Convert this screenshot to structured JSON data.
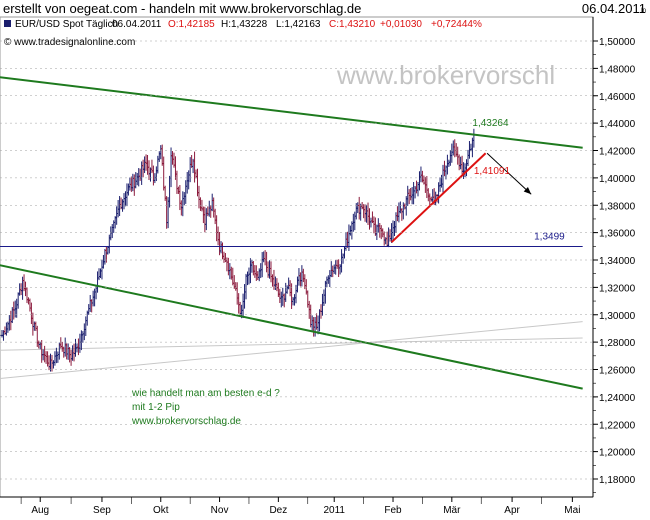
{
  "page": {
    "title": "erstellt von oegeat.com - handeln mit www.brokervorschlag.de",
    "date": "06.04.2011"
  },
  "chart_data": {
    "type": "ohlc",
    "instrument": "EUR/USD Spot Täglich",
    "header": {
      "date": "06.04.2011",
      "open": "O:1,42185",
      "high": "H:1,43228",
      "low": "L:1,42163",
      "close": "C:1,43210",
      "change": "+0,01030",
      "change_pct": "+0,72444%"
    },
    "source": "© www.tradesignalonline.com",
    "watermark": "www.brokervorschl",
    "ylim": [
      1.16,
      1.51
    ],
    "y_ticks": [
      "1,18000",
      "1,20000",
      "1,22000",
      "1,24000",
      "1,26000",
      "1,28000",
      "1,30000",
      "1,32000",
      "1,34000",
      "1,36000",
      "1,38000",
      "1,40000",
      "1,42000",
      "1,44000",
      "1,46000",
      "1,48000",
      "1,50000"
    ],
    "x_ticks": [
      "Aug",
      "Sep",
      "Okt",
      "Nov",
      "Dez",
      "2011",
      "Feb",
      "Mär",
      "Apr",
      "Mai"
    ],
    "series_color": "#1b1f6e",
    "up_color": "#1b1f6e",
    "down_color": "#8b1a3c",
    "anchors": [
      [
        0,
        1.285
      ],
      [
        9,
        1.305
      ],
      [
        14,
        1.325
      ],
      [
        18,
        1.31
      ],
      [
        22,
        1.29
      ],
      [
        26,
        1.275
      ],
      [
        33,
        1.263
      ],
      [
        40,
        1.278
      ],
      [
        47,
        1.27
      ],
      [
        51,
        1.275
      ],
      [
        58,
        1.3
      ],
      [
        64,
        1.32
      ],
      [
        70,
        1.345
      ],
      [
        75,
        1.36
      ],
      [
        80,
        1.38
      ],
      [
        86,
        1.392
      ],
      [
        92,
        1.4
      ],
      [
        98,
        1.41
      ],
      [
        103,
        1.4
      ],
      [
        108,
        1.42
      ],
      [
        112,
        1.37
      ],
      [
        115,
        1.42
      ],
      [
        118,
        1.4
      ],
      [
        122,
        1.38
      ],
      [
        126,
        1.4
      ],
      [
        130,
        1.415
      ],
      [
        134,
        1.385
      ],
      [
        138,
        1.37
      ],
      [
        143,
        1.38
      ],
      [
        148,
        1.35
      ],
      [
        153,
        1.34
      ],
      [
        158,
        1.32
      ],
      [
        163,
        1.3
      ],
      [
        166,
        1.325
      ],
      [
        170,
        1.335
      ],
      [
        174,
        1.325
      ],
      [
        178,
        1.34
      ],
      [
        182,
        1.33
      ],
      [
        186,
        1.32
      ],
      [
        190,
        1.31
      ],
      [
        194,
        1.32
      ],
      [
        198,
        1.31
      ],
      [
        202,
        1.33
      ],
      [
        206,
        1.325
      ],
      [
        210,
        1.295
      ],
      [
        214,
        1.29
      ],
      [
        218,
        1.31
      ],
      [
        222,
        1.33
      ],
      [
        226,
        1.335
      ],
      [
        231,
        1.34
      ],
      [
        236,
        1.36
      ],
      [
        240,
        1.375
      ],
      [
        245,
        1.38
      ],
      [
        250,
        1.37
      ],
      [
        254,
        1.36
      ],
      [
        258,
        1.365
      ],
      [
        262,
        1.35
      ],
      [
        266,
        1.365
      ],
      [
        271,
        1.375
      ],
      [
        276,
        1.385
      ],
      [
        280,
        1.39
      ],
      [
        285,
        1.4
      ],
      [
        290,
        1.39
      ],
      [
        294,
        1.38
      ],
      [
        298,
        1.395
      ],
      [
        302,
        1.41
      ],
      [
        306,
        1.42
      ],
      [
        310,
        1.415
      ],
      [
        314,
        1.405
      ],
      [
        318,
        1.42
      ],
      [
        321,
        1.43
      ]
    ],
    "lines": [
      {
        "name": "resistance",
        "color": "#1e7a1e",
        "width": 2,
        "from": [
          -5,
          1.474
        ],
        "to": [
          395,
          1.422
        ]
      },
      {
        "name": "support",
        "color": "#1e7a1e",
        "width": 2,
        "from": [
          -5,
          1.337
        ],
        "to": [
          395,
          1.246
        ]
      },
      {
        "name": "level",
        "color": "#1a1a8a",
        "width": 1,
        "from": [
          -5,
          1.3499
        ],
        "to": [
          395,
          1.3499
        ]
      },
      {
        "name": "uptrend",
        "color": "#dd1111",
        "width": 2,
        "from": [
          265,
          1.353
        ],
        "to": [
          329,
          1.418
        ]
      },
      {
        "name": "grey-1",
        "color": "#c8c8c8",
        "width": 1,
        "from": [
          -5,
          1.274
        ],
        "to": [
          395,
          1.283
        ]
      },
      {
        "name": "grey-2",
        "color": "#c8c8c8",
        "width": 1,
        "from": [
          -5,
          1.253
        ],
        "to": [
          395,
          1.295
        ]
      }
    ],
    "arrow": {
      "color": "#000000",
      "from": [
        330,
        1.418
      ],
      "to": [
        360,
        1.388
      ]
    },
    "labels": [
      {
        "text": "1,43264",
        "color": "#1e7a1e",
        "at": [
          320,
          1.438
        ]
      },
      {
        "text": "1,41091",
        "color": "#dd1111",
        "at": [
          321,
          1.403
        ]
      },
      {
        "text": "1,3499",
        "color": "#1a1a8a",
        "at": [
          362,
          1.355
        ]
      }
    ],
    "annotation": {
      "color": "#1e7a1e",
      "lines": [
        "wie handelt man am besten e-d ?",
        "mit 1-2 Pip",
        "www.brokervorschlag.de"
      ]
    }
  }
}
